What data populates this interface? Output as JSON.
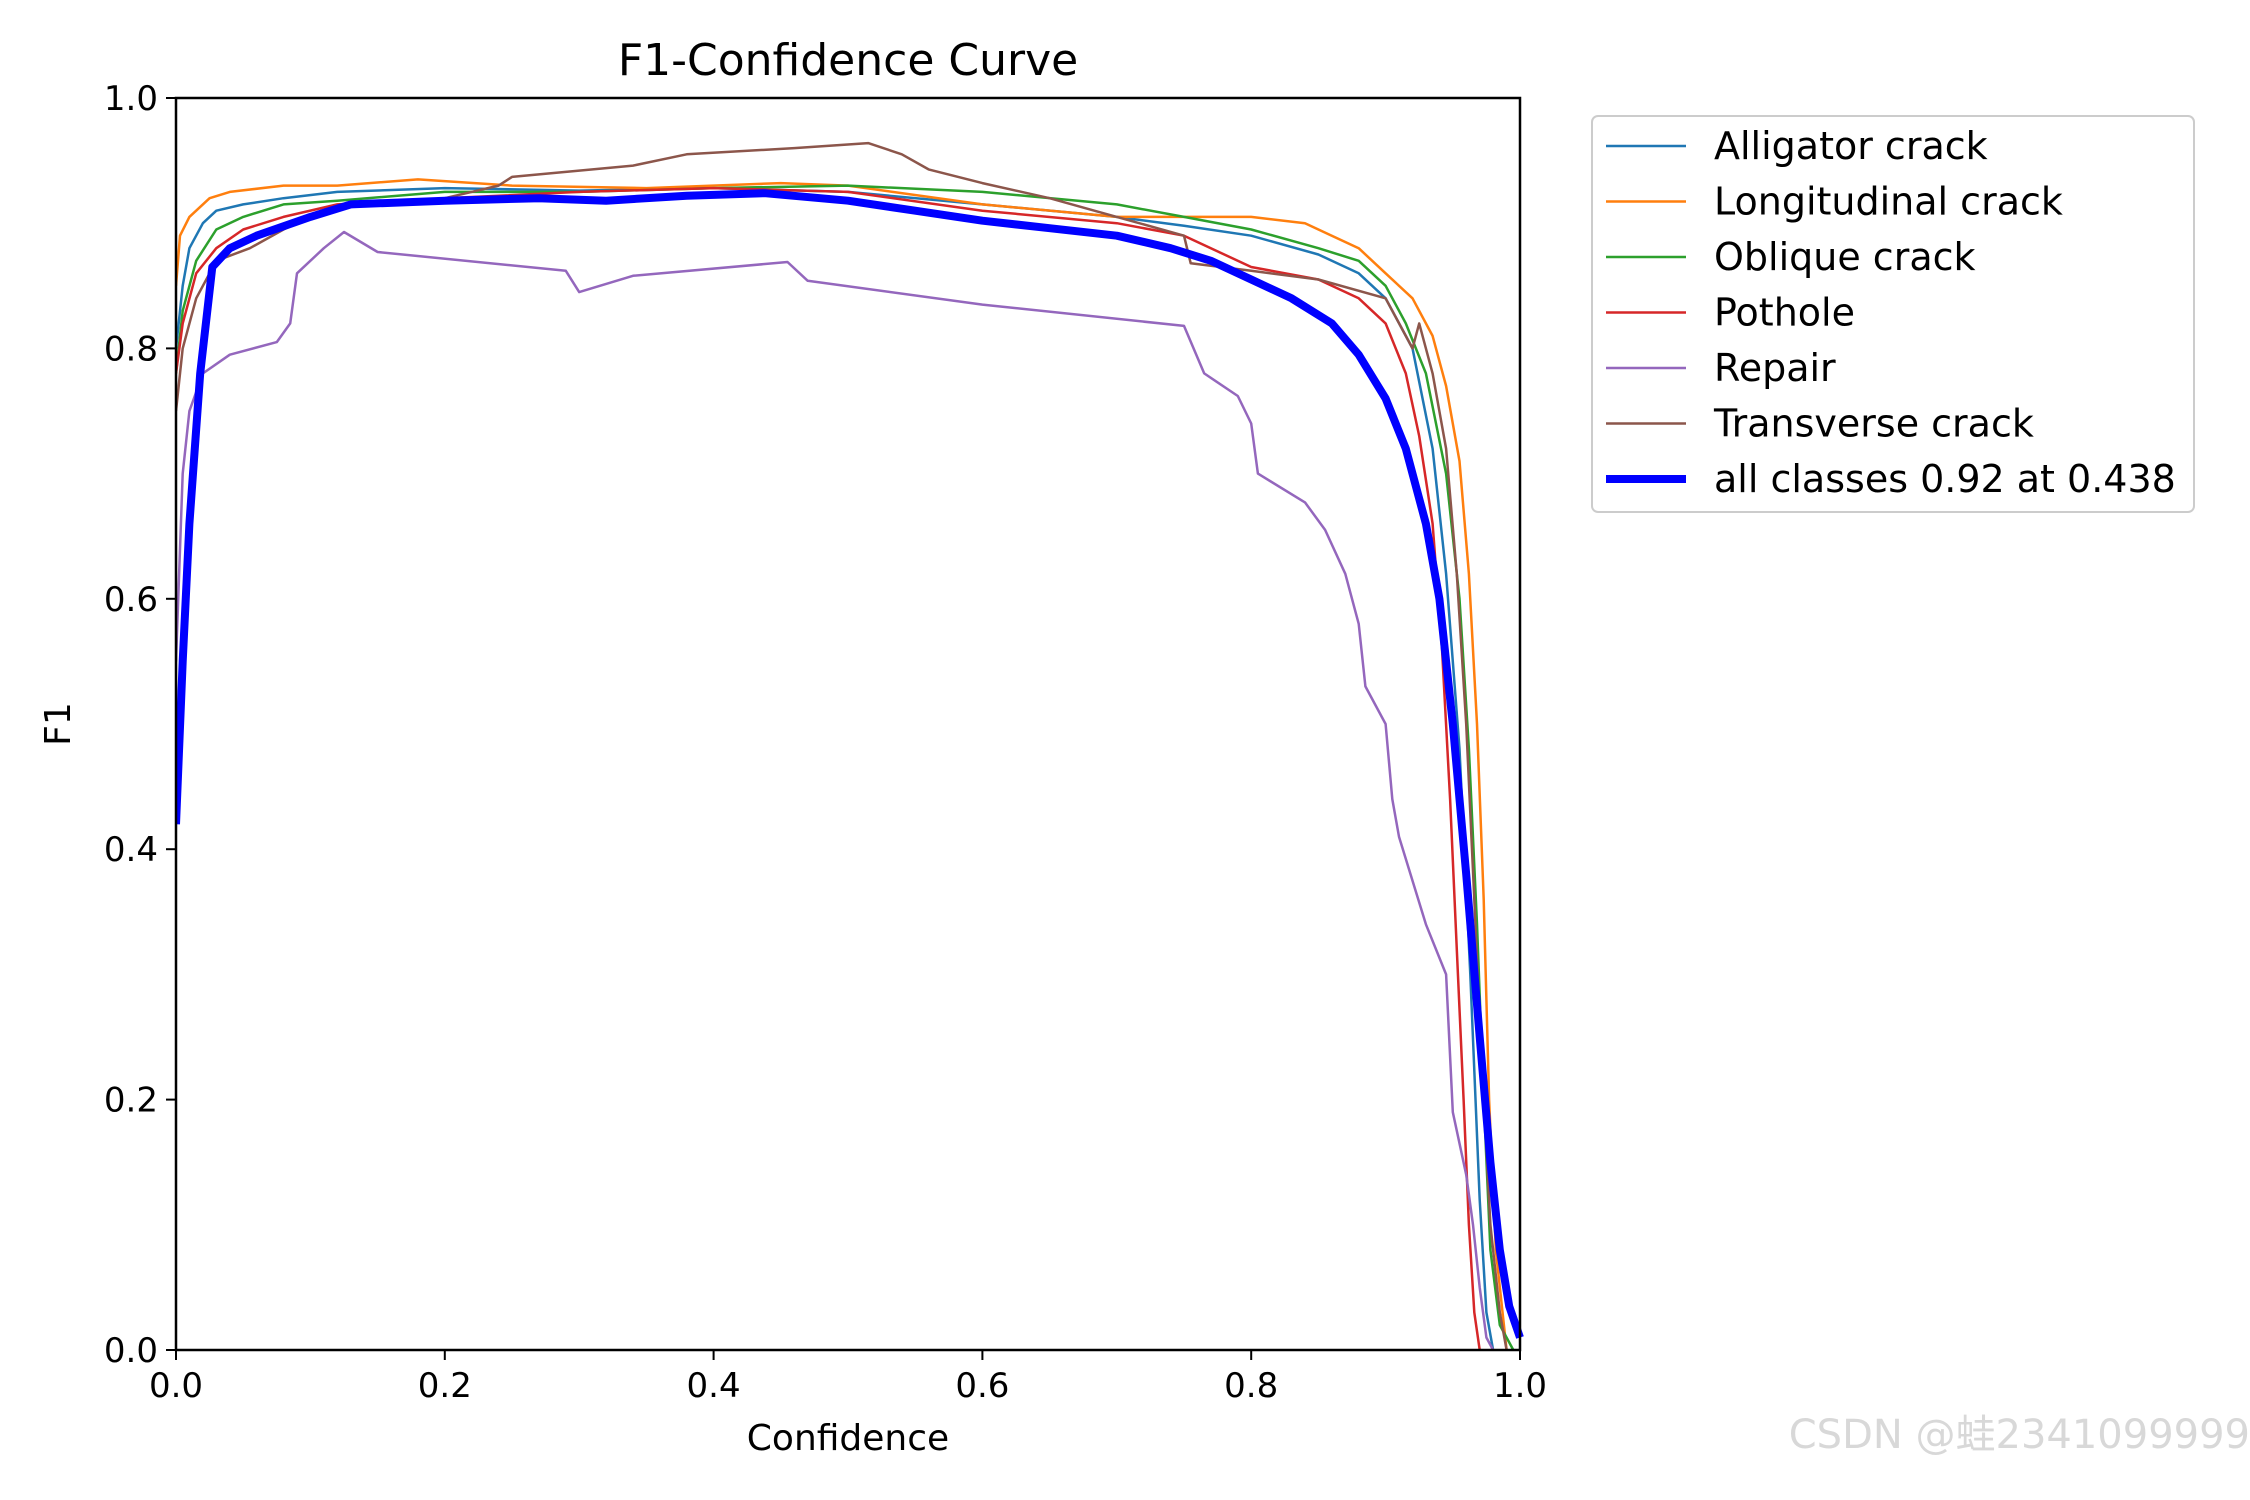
{
  "chart_data": {
    "type": "line",
    "title": "F1-Confidence Curve",
    "xlabel": "Confidence",
    "ylabel": "F1",
    "xlim": [
      0,
      1
    ],
    "ylim": [
      0,
      1
    ],
    "xticks": [
      "0.0",
      "0.2",
      "0.4",
      "0.6",
      "0.8",
      "1.0"
    ],
    "yticks": [
      "0.0",
      "0.2",
      "0.4",
      "0.6",
      "0.8",
      "1.0"
    ],
    "legend_position": "outside-right-top",
    "grid": false,
    "series": [
      {
        "name": "Alligator crack",
        "color": "#1f77b4",
        "width": 2.5,
        "points": [
          [
            0,
            0.8
          ],
          [
            0.005,
            0.85
          ],
          [
            0.01,
            0.88
          ],
          [
            0.02,
            0.9
          ],
          [
            0.03,
            0.91
          ],
          [
            0.05,
            0.915
          ],
          [
            0.08,
            0.92
          ],
          [
            0.12,
            0.925
          ],
          [
            0.2,
            0.928
          ],
          [
            0.3,
            0.926
          ],
          [
            0.4,
            0.928
          ],
          [
            0.5,
            0.925
          ],
          [
            0.6,
            0.915
          ],
          [
            0.7,
            0.905
          ],
          [
            0.75,
            0.898
          ],
          [
            0.8,
            0.89
          ],
          [
            0.85,
            0.875
          ],
          [
            0.88,
            0.86
          ],
          [
            0.9,
            0.84
          ],
          [
            0.92,
            0.8
          ],
          [
            0.935,
            0.72
          ],
          [
            0.945,
            0.62
          ],
          [
            0.955,
            0.48
          ],
          [
            0.963,
            0.3
          ],
          [
            0.97,
            0.12
          ],
          [
            0.975,
            0.03
          ],
          [
            0.98,
            0.0
          ]
        ]
      },
      {
        "name": "Longitudinal crack",
        "color": "#ff7f0e",
        "width": 2.5,
        "points": [
          [
            0,
            0.85
          ],
          [
            0.003,
            0.89
          ],
          [
            0.01,
            0.905
          ],
          [
            0.025,
            0.92
          ],
          [
            0.04,
            0.925
          ],
          [
            0.08,
            0.93
          ],
          [
            0.12,
            0.93
          ],
          [
            0.18,
            0.935
          ],
          [
            0.25,
            0.93
          ],
          [
            0.35,
            0.928
          ],
          [
            0.45,
            0.932
          ],
          [
            0.5,
            0.93
          ],
          [
            0.6,
            0.915
          ],
          [
            0.7,
            0.905
          ],
          [
            0.76,
            0.905
          ],
          [
            0.8,
            0.905
          ],
          [
            0.84,
            0.9
          ],
          [
            0.86,
            0.89
          ],
          [
            0.88,
            0.88
          ],
          [
            0.9,
            0.86
          ],
          [
            0.92,
            0.84
          ],
          [
            0.935,
            0.81
          ],
          [
            0.945,
            0.77
          ],
          [
            0.955,
            0.71
          ],
          [
            0.962,
            0.62
          ],
          [
            0.968,
            0.5
          ],
          [
            0.973,
            0.36
          ],
          [
            0.977,
            0.2
          ],
          [
            0.982,
            0.08
          ],
          [
            0.99,
            0.0
          ]
        ]
      },
      {
        "name": "Oblique crack",
        "color": "#2ca02c",
        "width": 2.5,
        "points": [
          [
            0,
            0.78
          ],
          [
            0.005,
            0.83
          ],
          [
            0.015,
            0.87
          ],
          [
            0.03,
            0.895
          ],
          [
            0.05,
            0.905
          ],
          [
            0.08,
            0.915
          ],
          [
            0.12,
            0.918
          ],
          [
            0.2,
            0.925
          ],
          [
            0.3,
            0.925
          ],
          [
            0.4,
            0.928
          ],
          [
            0.5,
            0.93
          ],
          [
            0.6,
            0.925
          ],
          [
            0.7,
            0.915
          ],
          [
            0.75,
            0.905
          ],
          [
            0.8,
            0.895
          ],
          [
            0.85,
            0.88
          ],
          [
            0.88,
            0.87
          ],
          [
            0.9,
            0.85
          ],
          [
            0.915,
            0.82
          ],
          [
            0.93,
            0.78
          ],
          [
            0.945,
            0.7
          ],
          [
            0.955,
            0.6
          ],
          [
            0.962,
            0.48
          ],
          [
            0.968,
            0.34
          ],
          [
            0.973,
            0.2
          ],
          [
            0.978,
            0.08
          ],
          [
            0.985,
            0.02
          ],
          [
            0.995,
            0.0
          ]
        ]
      },
      {
        "name": "Pothole",
        "color": "#d62728",
        "width": 2.5,
        "points": [
          [
            0,
            0.78
          ],
          [
            0.005,
            0.82
          ],
          [
            0.015,
            0.86
          ],
          [
            0.03,
            0.88
          ],
          [
            0.05,
            0.895
          ],
          [
            0.08,
            0.905
          ],
          [
            0.12,
            0.915
          ],
          [
            0.2,
            0.92
          ],
          [
            0.3,
            0.925
          ],
          [
            0.4,
            0.928
          ],
          [
            0.5,
            0.925
          ],
          [
            0.6,
            0.91
          ],
          [
            0.7,
            0.9
          ],
          [
            0.75,
            0.89
          ],
          [
            0.78,
            0.875
          ],
          [
            0.8,
            0.865
          ],
          [
            0.85,
            0.855
          ],
          [
            0.88,
            0.84
          ],
          [
            0.9,
            0.82
          ],
          [
            0.915,
            0.78
          ],
          [
            0.925,
            0.73
          ],
          [
            0.935,
            0.66
          ],
          [
            0.942,
            0.56
          ],
          [
            0.948,
            0.44
          ],
          [
            0.953,
            0.32
          ],
          [
            0.958,
            0.2
          ],
          [
            0.962,
            0.1
          ],
          [
            0.966,
            0.03
          ],
          [
            0.97,
            0.0
          ]
        ]
      },
      {
        "name": "Repair",
        "color": "#9467bd",
        "width": 2.5,
        "points": [
          [
            0,
            0.55
          ],
          [
            0.005,
            0.7
          ],
          [
            0.01,
            0.75
          ],
          [
            0.02,
            0.78
          ],
          [
            0.04,
            0.795
          ],
          [
            0.075,
            0.805
          ],
          [
            0.085,
            0.82
          ],
          [
            0.09,
            0.86
          ],
          [
            0.11,
            0.88
          ],
          [
            0.125,
            0.893
          ],
          [
            0.15,
            0.877
          ],
          [
            0.29,
            0.862
          ],
          [
            0.3,
            0.845
          ],
          [
            0.34,
            0.858
          ],
          [
            0.455,
            0.869
          ],
          [
            0.47,
            0.854
          ],
          [
            0.6,
            0.835
          ],
          [
            0.75,
            0.818
          ],
          [
            0.765,
            0.78
          ],
          [
            0.79,
            0.762
          ],
          [
            0.8,
            0.74
          ],
          [
            0.805,
            0.7
          ],
          [
            0.84,
            0.677
          ],
          [
            0.855,
            0.655
          ],
          [
            0.87,
            0.62
          ],
          [
            0.88,
            0.58
          ],
          [
            0.885,
            0.53
          ],
          [
            0.9,
            0.5
          ],
          [
            0.905,
            0.44
          ],
          [
            0.91,
            0.41
          ],
          [
            0.93,
            0.34
          ],
          [
            0.945,
            0.3
          ],
          [
            0.95,
            0.19
          ],
          [
            0.96,
            0.14
          ],
          [
            0.965,
            0.1
          ],
          [
            0.97,
            0.05
          ],
          [
            0.975,
            0.01
          ],
          [
            0.98,
            0.0
          ]
        ]
      },
      {
        "name": "Transverse crack",
        "color": "#8c564b",
        "width": 2.5,
        "points": [
          [
            0,
            0.75
          ],
          [
            0.005,
            0.8
          ],
          [
            0.015,
            0.84
          ],
          [
            0.03,
            0.87
          ],
          [
            0.055,
            0.88
          ],
          [
            0.08,
            0.895
          ],
          [
            0.1,
            0.905
          ],
          [
            0.12,
            0.912
          ],
          [
            0.2,
            0.92
          ],
          [
            0.24,
            0.93
          ],
          [
            0.25,
            0.937
          ],
          [
            0.34,
            0.946
          ],
          [
            0.38,
            0.955
          ],
          [
            0.46,
            0.96
          ],
          [
            0.515,
            0.964
          ],
          [
            0.54,
            0.955
          ],
          [
            0.56,
            0.943
          ],
          [
            0.6,
            0.932
          ],
          [
            0.65,
            0.92
          ],
          [
            0.7,
            0.905
          ],
          [
            0.75,
            0.89
          ],
          [
            0.755,
            0.868
          ],
          [
            0.8,
            0.862
          ],
          [
            0.85,
            0.855
          ],
          [
            0.9,
            0.84
          ],
          [
            0.915,
            0.81
          ],
          [
            0.92,
            0.8
          ],
          [
            0.925,
            0.82
          ],
          [
            0.935,
            0.78
          ],
          [
            0.945,
            0.72
          ],
          [
            0.953,
            0.62
          ],
          [
            0.96,
            0.5
          ],
          [
            0.966,
            0.36
          ],
          [
            0.972,
            0.22
          ],
          [
            0.978,
            0.1
          ],
          [
            0.985,
            0.03
          ],
          [
            0.99,
            0.0
          ]
        ]
      },
      {
        "name": "all classes 0.92 at 0.438",
        "color": "#0000ff",
        "width": 8,
        "points": [
          [
            0,
            0.42
          ],
          [
            0.005,
            0.55
          ],
          [
            0.01,
            0.66
          ],
          [
            0.018,
            0.78
          ],
          [
            0.027,
            0.865
          ],
          [
            0.04,
            0.88
          ],
          [
            0.06,
            0.89
          ],
          [
            0.1,
            0.905
          ],
          [
            0.13,
            0.915
          ],
          [
            0.2,
            0.918
          ],
          [
            0.27,
            0.92
          ],
          [
            0.32,
            0.918
          ],
          [
            0.38,
            0.922
          ],
          [
            0.438,
            0.924
          ],
          [
            0.5,
            0.918
          ],
          [
            0.55,
            0.91
          ],
          [
            0.6,
            0.902
          ],
          [
            0.65,
            0.896
          ],
          [
            0.7,
            0.89
          ],
          [
            0.74,
            0.88
          ],
          [
            0.77,
            0.87
          ],
          [
            0.8,
            0.855
          ],
          [
            0.83,
            0.84
          ],
          [
            0.86,
            0.82
          ],
          [
            0.88,
            0.795
          ],
          [
            0.9,
            0.76
          ],
          [
            0.915,
            0.72
          ],
          [
            0.93,
            0.66
          ],
          [
            0.94,
            0.6
          ],
          [
            0.95,
            0.5
          ],
          [
            0.96,
            0.38
          ],
          [
            0.97,
            0.25
          ],
          [
            0.978,
            0.15
          ],
          [
            0.985,
            0.08
          ],
          [
            0.992,
            0.035
          ],
          [
            1.0,
            0.01
          ]
        ]
      }
    ]
  },
  "watermark": "CSDN @蛙2341099999"
}
